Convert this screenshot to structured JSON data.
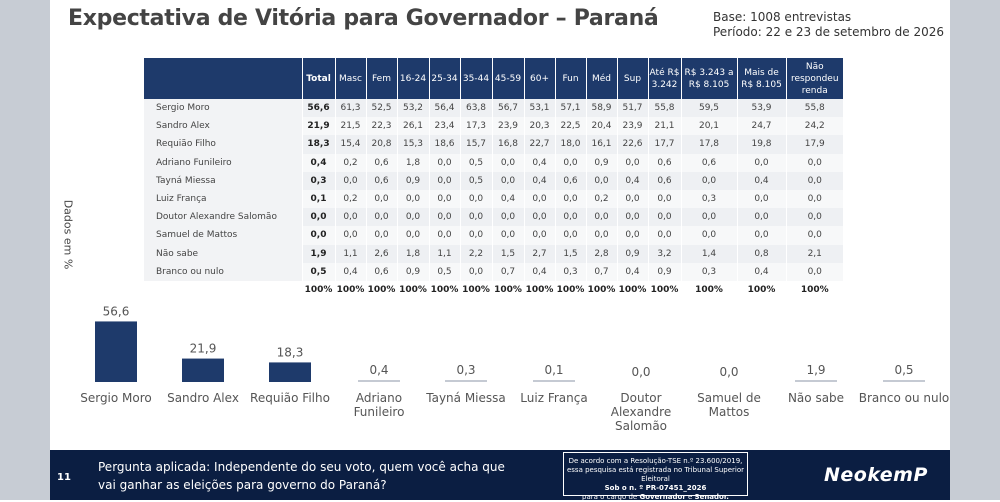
{
  "title": "Expectativa de Vitória para Governador – Paraná",
  "meta": {
    "base": "Base: 1008 entrevistas",
    "periodo": "Período: 22 e 23 de setembro de 2026"
  },
  "axis_label": "Dados em %",
  "table": {
    "headers": [
      "Total",
      "Masc",
      "Fem",
      "16-24",
      "25-34",
      "35-44",
      "45-59",
      "60+",
      "Fun",
      "Méd",
      "Sup",
      "Até R$ 3.242",
      "R$ 3.243 a R$ 8.105",
      "Mais de R$ 8.105",
      "Não respondeu renda"
    ],
    "rows": [
      {
        "name": "Sergio Moro",
        "values": [
          "56,6",
          "61,3",
          "52,5",
          "53,2",
          "56,4",
          "63,8",
          "56,7",
          "53,1",
          "57,1",
          "58,9",
          "51,7",
          "55,8",
          "59,5",
          "53,9",
          "55,8"
        ]
      },
      {
        "name": "Sandro Alex",
        "values": [
          "21,9",
          "21,5",
          "22,3",
          "26,1",
          "23,4",
          "17,3",
          "23,9",
          "20,3",
          "22,5",
          "20,4",
          "23,9",
          "21,1",
          "20,1",
          "24,7",
          "24,2"
        ]
      },
      {
        "name": "Requião Filho",
        "values": [
          "18,3",
          "15,4",
          "20,8",
          "15,3",
          "18,6",
          "15,7",
          "16,8",
          "22,7",
          "18,0",
          "16,1",
          "22,6",
          "17,7",
          "17,8",
          "19,8",
          "17,9"
        ]
      },
      {
        "name": "Adriano Funileiro",
        "values": [
          "0,4",
          "0,2",
          "0,6",
          "1,8",
          "0,0",
          "0,5",
          "0,0",
          "0,4",
          "0,0",
          "0,9",
          "0,0",
          "0,6",
          "0,6",
          "0,0",
          "0,0"
        ]
      },
      {
        "name": "Tayná Miessa",
        "values": [
          "0,3",
          "0,0",
          "0,6",
          "0,9",
          "0,0",
          "0,5",
          "0,0",
          "0,4",
          "0,6",
          "0,0",
          "0,4",
          "0,6",
          "0,0",
          "0,4",
          "0,0"
        ]
      },
      {
        "name": "Luiz França",
        "values": [
          "0,1",
          "0,2",
          "0,0",
          "0,0",
          "0,0",
          "0,0",
          "0,4",
          "0,0",
          "0,0",
          "0,2",
          "0,0",
          "0,0",
          "0,3",
          "0,0",
          "0,0"
        ]
      },
      {
        "name": "Doutor Alexandre Salomão",
        "values": [
          "0,0",
          "0,0",
          "0,0",
          "0,0",
          "0,0",
          "0,0",
          "0,0",
          "0,0",
          "0,0",
          "0,0",
          "0,0",
          "0,0",
          "0,0",
          "0,0",
          "0,0"
        ]
      },
      {
        "name": "Samuel de Mattos",
        "values": [
          "0,0",
          "0,0",
          "0,0",
          "0,0",
          "0,0",
          "0,0",
          "0,0",
          "0,0",
          "0,0",
          "0,0",
          "0,0",
          "0,0",
          "0,0",
          "0,0",
          "0,0"
        ]
      },
      {
        "name": "Não sabe",
        "values": [
          "1,9",
          "1,1",
          "2,6",
          "1,8",
          "1,1",
          "2,2",
          "1,5",
          "2,7",
          "1,5",
          "2,8",
          "0,9",
          "3,2",
          "1,4",
          "0,8",
          "2,1"
        ]
      },
      {
        "name": "Branco ou nulo",
        "values": [
          "0,5",
          "0,4",
          "0,6",
          "0,9",
          "0,5",
          "0,0",
          "0,7",
          "0,4",
          "0,3",
          "0,7",
          "0,4",
          "0,9",
          "0,3",
          "0,4",
          "0,0"
        ]
      }
    ],
    "totals": [
      "100%",
      "100%",
      "100%",
      "100%",
      "100%",
      "100%",
      "100%",
      "100%",
      "100%",
      "100%",
      "100%",
      "100%",
      "100%",
      "100%",
      "100%"
    ]
  },
  "chart_data": {
    "type": "bar",
    "categories": [
      "Sergio Moro",
      "Sandro Alex",
      "Requião Filho",
      "Adriano Funileiro",
      "Tayná Miessa",
      "Luiz França",
      "Doutor Alexandre Salomão",
      "Samuel de Mattos",
      "Não sabe",
      "Branco ou nulo"
    ],
    "values": [
      56.6,
      21.9,
      18.3,
      0.4,
      0.3,
      0.1,
      0.0,
      0.0,
      1.9,
      0.5
    ],
    "labels": [
      "56,6",
      "21,9",
      "18,3",
      "0,4",
      "0,3",
      "0,1",
      "0,0",
      "0,0",
      "1,9",
      "0,5"
    ],
    "category_lines": [
      [
        "Sergio Moro"
      ],
      [
        "Sandro Alex"
      ],
      [
        "Requião Filho"
      ],
      [
        "Adriano",
        "Funileiro"
      ],
      [
        "Tayná Miessa"
      ],
      [
        "Luiz França"
      ],
      [
        "Doutor",
        "Alexandre",
        "Salomão"
      ],
      [
        "Samuel de",
        "Mattos"
      ],
      [
        "Não sabe"
      ],
      [
        "Branco ou nulo"
      ]
    ],
    "ylim": [
      0,
      60
    ],
    "grid": false,
    "colors": {
      "bar": "#1e3a6b",
      "light_bar": "#c5cad3",
      "label": "#555555"
    }
  },
  "footer": {
    "page_number": "11",
    "question": "Pergunta aplicada: Independente do seu voto, quem você acha que vai ganhar as eleições para governo do Paraná?",
    "legal_line1": "De acordo com a Resolução-TSE n.º 23.600/2019,",
    "legal_line2": "essa pesquisa está registrada no Tribunal Superior Eleitoral",
    "legal_line3": "Sob o n. º PR-07451_2026",
    "legal_line4a": "para o cargo de ",
    "legal_line4b": "Governador",
    "legal_line4c": " e ",
    "legal_line4d": "Senador.",
    "logo": "NeokemP"
  }
}
